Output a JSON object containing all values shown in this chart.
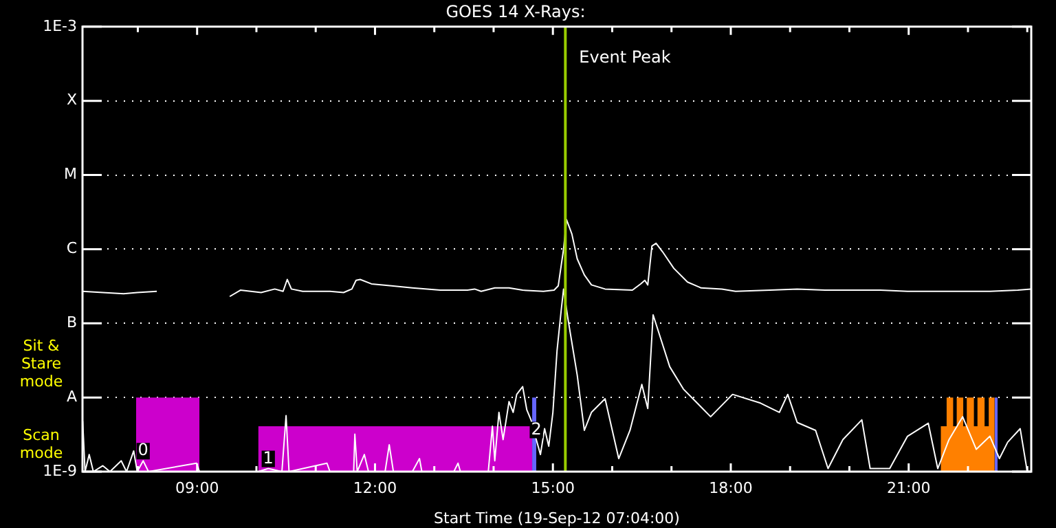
{
  "chart_data": {
    "type": "line",
    "title": "GOES 14 X-Rays:",
    "xlabel": "Start Time (19-Sep-12 07:04:00)",
    "xlim": [
      7.067,
      23.067
    ],
    "xticks": [
      {
        "value": 8,
        "label": null
      },
      {
        "value": 9,
        "label": "09:00"
      },
      {
        "value": 10,
        "label": null
      },
      {
        "value": 11,
        "label": null
      },
      {
        "value": 12,
        "label": "12:00"
      },
      {
        "value": 13,
        "label": null
      },
      {
        "value": 14,
        "label": null
      },
      {
        "value": 15,
        "label": "15:00"
      },
      {
        "value": 16,
        "label": null
      },
      {
        "value": 17,
        "label": null
      },
      {
        "value": 18,
        "label": "18:00"
      },
      {
        "value": 19,
        "label": null
      },
      {
        "value": 20,
        "label": null
      },
      {
        "value": 21,
        "label": "21:00"
      },
      {
        "value": 22,
        "label": null
      },
      {
        "value": 23,
        "label": null
      }
    ],
    "ylim": [
      1e-09,
      0.001
    ],
    "yticks": [
      {
        "value": 1e-09,
        "label": "1E-9"
      },
      {
        "value": 1e-08,
        "label": "A"
      },
      {
        "value": 1e-07,
        "label": "B"
      },
      {
        "value": 1e-06,
        "label": "C"
      },
      {
        "value": 1e-05,
        "label": "M"
      },
      {
        "value": 0.0001,
        "label": "X"
      },
      {
        "value": 0.001,
        "label": "1E-3"
      }
    ],
    "log": "y",
    "grid": "y",
    "ref_lines": [
      {
        "axis": "x",
        "value": 15.21,
        "label": "Event Peak",
        "color": "#99cc00"
      }
    ],
    "annotations": [
      "Sit & Stare mode",
      "Scan mode",
      {
        "text": "0",
        "x": 8.09,
        "y": 1.4e-09
      },
      {
        "text": "1",
        "x": 10.2,
        "y": 1.1e-09
      },
      {
        "text": "2",
        "x": 14.72,
        "y": 2.7e-09
      }
    ],
    "series": [
      {
        "color": "#ffffff",
        "x": [
          7.07,
          7.41,
          7.76,
          7.99,
          8.32,
          8.9,
          9.55,
          9.73,
          10.08,
          10.31,
          10.45,
          10.52,
          10.59,
          10.78,
          11.24,
          11.47,
          11.61,
          11.68,
          11.75,
          11.94,
          12.28,
          12.63,
          13.1,
          13.56,
          13.68,
          13.79,
          14.02,
          14.26,
          14.49,
          14.84,
          15.02,
          15.09,
          15.18,
          15.23,
          15.32,
          15.41,
          15.53,
          15.65,
          15.88,
          16.34,
          16.48,
          16.55,
          16.6,
          16.67,
          16.74,
          16.85,
          17.04,
          17.27,
          17.5,
          17.85,
          18.08,
          18.66,
          19.12,
          19.59,
          20.05,
          20.52,
          20.98,
          21.44,
          21.91,
          22.37,
          22.84,
          23.06
        ],
        "values": [
          2.7e-07,
          2.6e-07,
          2.5e-07,
          2.6e-07,
          2.7e-07,
          null,
          2.3e-07,
          2.8e-07,
          2.6e-07,
          2.9e-07,
          2.7e-07,
          3.9e-07,
          2.9e-07,
          2.7e-07,
          2.7e-07,
          2.6e-07,
          2.9e-07,
          3.8e-07,
          3.9e-07,
          3.4e-07,
          3.2e-07,
          3e-07,
          2.8e-07,
          2.8e-07,
          2.9e-07,
          2.7e-07,
          3e-07,
          3e-07,
          2.8e-07,
          2.7e-07,
          2.8e-07,
          3.2e-07,
          1e-06,
          2.5e-06,
          1.6e-06,
          7.4e-07,
          4.5e-07,
          3.3e-07,
          2.9e-07,
          2.8e-07,
          3.4e-07,
          3.8e-07,
          3.3e-07,
          1.1e-06,
          1.2e-06,
          9.2e-07,
          5.5e-07,
          3.6e-07,
          3e-07,
          2.9e-07,
          2.7e-07,
          2.8e-07,
          2.9e-07,
          2.8e-07,
          2.8e-07,
          2.8e-07,
          2.7e-07,
          2.7e-07,
          2.7e-07,
          2.7e-07,
          2.8e-07,
          2.9e-07
        ]
      },
      {
        "color": "#ffffff",
        "x": [
          7.07,
          7.11,
          7.18,
          7.25,
          7.41,
          7.53,
          7.72,
          7.81,
          7.93,
          7.99,
          8.09,
          8.18,
          8.99,
          9.04,
          9.5,
          10.03,
          10.2,
          10.43,
          10.5,
          10.55,
          11.19,
          11.24,
          11.64,
          11.66,
          11.7,
          11.82,
          11.89,
          12.17,
          12.24,
          12.31,
          12.63,
          12.75,
          12.79,
          13.33,
          13.4,
          13.44,
          13.91,
          13.98,
          14.02,
          14.09,
          14.16,
          14.26,
          14.33,
          14.39,
          14.49,
          14.56,
          14.63,
          14.72,
          14.79,
          14.86,
          14.93,
          15.0,
          15.07,
          15.14,
          15.18,
          15.25,
          15.41,
          15.53,
          15.65,
          15.88,
          16.11,
          16.3,
          16.5,
          16.6,
          16.69,
          16.97,
          17.2,
          17.66,
          18.03,
          18.5,
          18.82,
          18.96,
          19.12,
          19.43,
          19.64,
          19.89,
          20.21,
          20.35,
          20.68,
          20.98,
          21.33,
          21.49,
          21.68,
          21.91,
          22.14,
          22.37,
          22.53,
          22.67,
          22.88,
          23.0
        ],
        "values": [
          4.8e-09,
          1e-09,
          1.7e-09,
          1e-09,
          1.2e-09,
          1e-09,
          1.4e-09,
          1e-09,
          1.9e-09,
          1e-09,
          1.4e-09,
          1e-09,
          1.3e-09,
          1e-09,
          null,
          1e-09,
          1.1e-09,
          1e-09,
          5.7e-09,
          1e-09,
          1.3e-09,
          1e-09,
          1e-09,
          3.2e-09,
          1e-09,
          1.7e-09,
          1e-09,
          1e-09,
          2.3e-09,
          1e-09,
          1e-09,
          1.5e-09,
          1e-09,
          1e-09,
          1.3e-09,
          1e-09,
          1e-09,
          4.1e-09,
          1.4e-09,
          6.3e-09,
          2.7e-09,
          8.8e-09,
          6.3e-09,
          1.1e-08,
          1.4e-08,
          6.8e-09,
          5e-09,
          2.7e-09,
          1.7e-09,
          3.8e-09,
          2.2e-09,
          6.3e-09,
          4.3e-08,
          1.5e-07,
          2.9e-07,
          1.2e-07,
          2e-08,
          3.6e-09,
          6.3e-09,
          9.6e-09,
          1.5e-09,
          3.6e-09,
          1.5e-08,
          7.1e-09,
          1.3e-07,
          2.6e-08,
          1.3e-08,
          5.5e-09,
          1.1e-08,
          8.4e-09,
          6.3e-09,
          1.1e-08,
          4.6e-09,
          3.6e-09,
          1.1e-09,
          2.7e-09,
          5e-09,
          1.1e-09,
          1.1e-09,
          3e-09,
          4.5e-09,
          1.1e-09,
          2.7e-09,
          5.5e-09,
          2e-09,
          3e-09,
          1.5e-09,
          2.5e-09,
          3.8e-09,
          1e-09
        ]
      },
      {
        "type": "area",
        "color": "#cc00cc",
        "x": [
          7.97,
          9.04
        ],
        "values": [
          1e-08,
          1e-08
        ]
      },
      {
        "type": "area",
        "color": "#cc00cc",
        "x": [
          10.03,
          14.65
        ],
        "values": [
          4.1e-09,
          4.1e-09
        ]
      },
      {
        "type": "area",
        "color": "#6666ff",
        "x": [
          14.65,
          14.72
        ],
        "values": [
          1e-08,
          1e-08
        ]
      },
      {
        "type": "area",
        "color": "#ff8000",
        "x": [
          21.54,
          21.64,
          21.64,
          21.75,
          21.75,
          21.81,
          21.81,
          21.92,
          21.92,
          21.98,
          21.98,
          22.1,
          22.1,
          22.16,
          22.16,
          22.28,
          22.28,
          22.35,
          22.35,
          22.45
        ],
        "values": [
          4.1e-09,
          4.1e-09,
          1e-08,
          1e-08,
          4.1e-09,
          4.1e-09,
          1e-08,
          1e-08,
          4.1e-09,
          4.1e-09,
          1e-08,
          1e-08,
          4.1e-09,
          4.1e-09,
          1e-08,
          1e-08,
          4.1e-09,
          4.1e-09,
          1e-08,
          1e-08
        ]
      },
      {
        "type": "area",
        "color": "#6666ff",
        "x": [
          22.45,
          22.5
        ],
        "values": [
          1e-08,
          1e-08
        ]
      }
    ]
  }
}
